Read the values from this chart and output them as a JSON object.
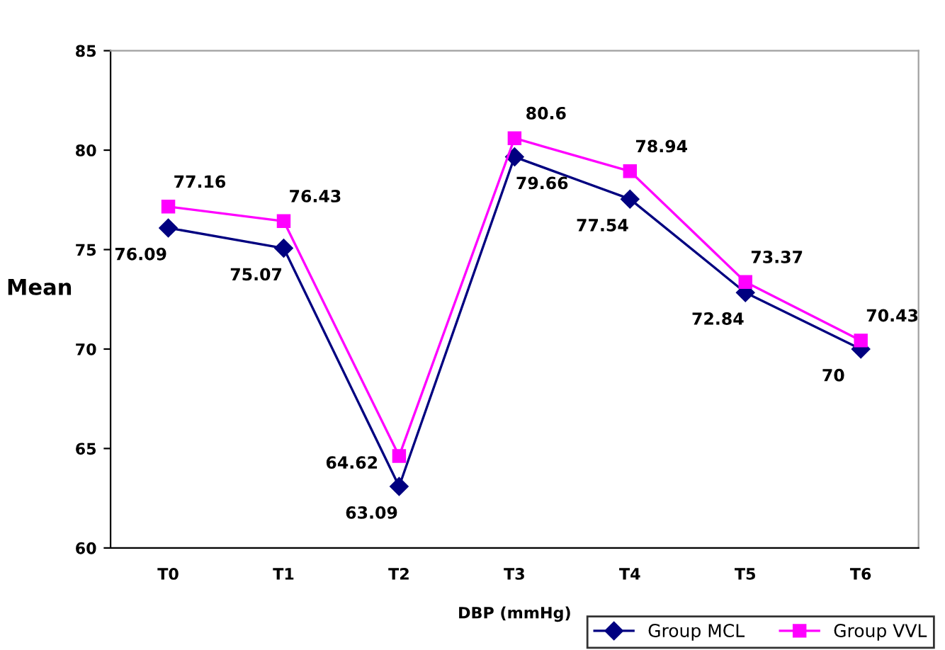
{
  "chart_data": {
    "type": "line",
    "xlabel": "DBP (mmHg)",
    "ylabel": "Mean",
    "categories": [
      "T0",
      "T1",
      "T2",
      "T3",
      "T4",
      "T5",
      "T6"
    ],
    "series": [
      {
        "name": "Group MCL",
        "color": "#000080",
        "marker": "diamond",
        "values": [
          76.09,
          75.07,
          63.09,
          79.66,
          77.54,
          72.84,
          70
        ]
      },
      {
        "name": "Group VVL",
        "color": "#ff00ff",
        "marker": "square",
        "values": [
          77.16,
          76.43,
          64.62,
          80.6,
          78.94,
          73.37,
          70.43
        ]
      }
    ],
    "ylim": [
      60,
      85
    ],
    "yticks": [
      60,
      65,
      70,
      75,
      80,
      85
    ],
    "grid": false,
    "legend": "bottom right",
    "data_labels": true,
    "line_style": "solid"
  }
}
